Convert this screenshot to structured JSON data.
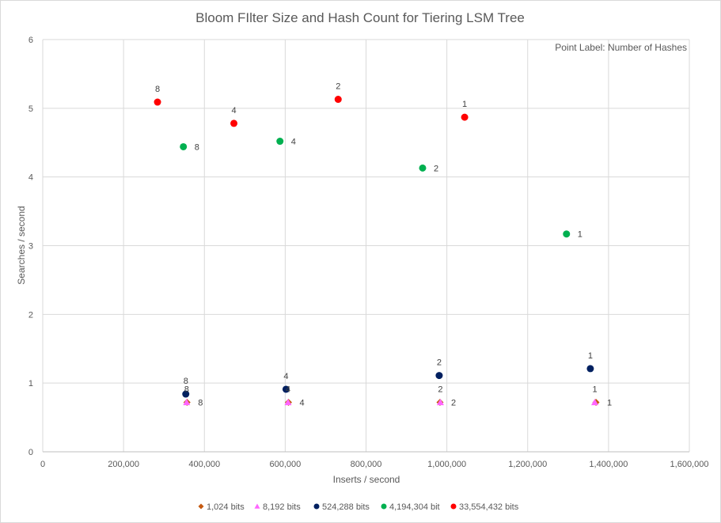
{
  "chart_data": {
    "type": "scatter",
    "title": "Bloom FIlter Size and Hash Count for Tiering LSM Tree",
    "xlabel": "Inserts / second",
    "ylabel": "Searches / second",
    "annotation": "Point Label: Number of Hashes",
    "xlim": [
      0,
      1600000
    ],
    "ylim": [
      0,
      6
    ],
    "x_ticks": [
      "0",
      "200,000",
      "400,000",
      "600,000",
      "800,000",
      "1,000,000",
      "1,200,000",
      "1,400,000",
      "1,600,000"
    ],
    "y_ticks": [
      "0",
      "1",
      "2",
      "3",
      "4",
      "5",
      "6"
    ],
    "grid": true,
    "legend_position": "bottom",
    "series": [
      {
        "name": "1,024 bits",
        "color": "#c55a11",
        "marker": "diamond",
        "points": [
          {
            "x": 357000,
            "y": 0.72,
            "label": "8"
          },
          {
            "x": 608000,
            "y": 0.72,
            "label": "4"
          },
          {
            "x": 983000,
            "y": 0.72,
            "label": "2"
          },
          {
            "x": 1369000,
            "y": 0.72,
            "label": "1"
          }
        ]
      },
      {
        "name": "8,192 bits",
        "color": "#ff66ff",
        "marker": "triangle",
        "points": [
          {
            "x": 356000,
            "y": 0.72,
            "label": "8"
          },
          {
            "x": 607000,
            "y": 0.72,
            "label": "4"
          },
          {
            "x": 984000,
            "y": 0.72,
            "label": "2"
          },
          {
            "x": 1366000,
            "y": 0.72,
            "label": "1"
          }
        ]
      },
      {
        "name": "524,288 bits",
        "color": "#002060",
        "marker": "circle",
        "points": [
          {
            "x": 354000,
            "y": 0.84,
            "label": "8"
          },
          {
            "x": 602000,
            "y": 0.91,
            "label": "4"
          },
          {
            "x": 981000,
            "y": 1.11,
            "label": "2"
          },
          {
            "x": 1355000,
            "y": 1.21,
            "label": "1"
          }
        ]
      },
      {
        "name": "4,194,304 bit",
        "color": "#00b050",
        "marker": "circle",
        "points": [
          {
            "x": 348000,
            "y": 4.44,
            "label": "8"
          },
          {
            "x": 587000,
            "y": 4.52,
            "label": "4"
          },
          {
            "x": 940000,
            "y": 4.13,
            "label": "2"
          },
          {
            "x": 1296000,
            "y": 3.17,
            "label": "1"
          }
        ]
      },
      {
        "name": "33,554,432 bits",
        "color": "#ff0000",
        "marker": "circle",
        "points": [
          {
            "x": 284000,
            "y": 5.09,
            "label": "8"
          },
          {
            "x": 473000,
            "y": 4.78,
            "label": "4"
          },
          {
            "x": 731000,
            "y": 5.13,
            "label": "2"
          },
          {
            "x": 1044000,
            "y": 4.87,
            "label": "1"
          }
        ]
      }
    ]
  }
}
